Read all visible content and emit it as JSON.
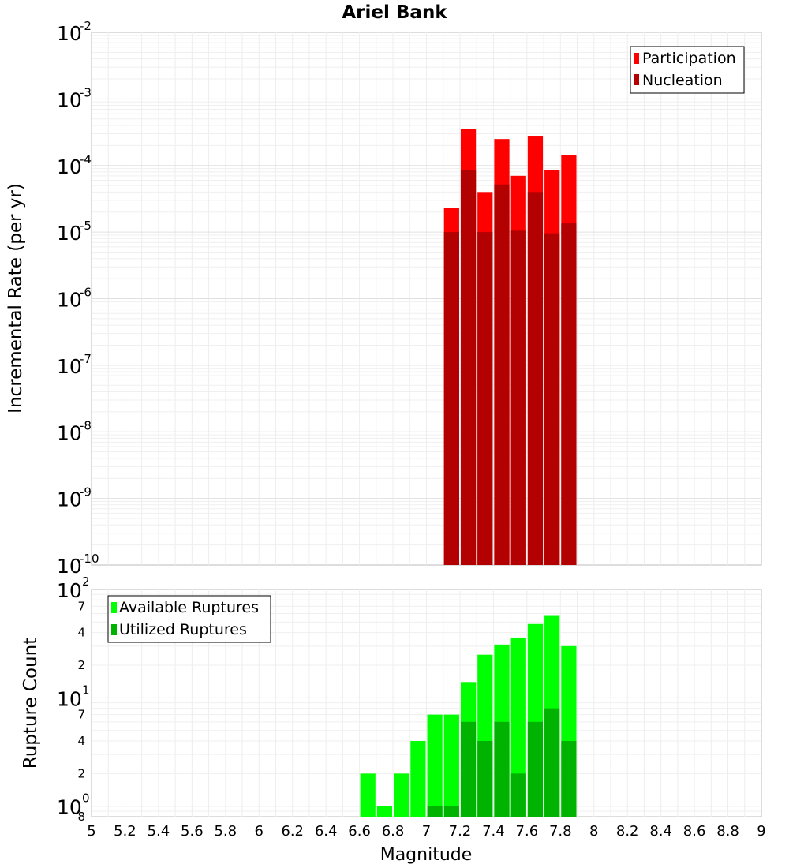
{
  "chart_data": [
    {
      "type": "bar",
      "title": "Ariel Bank",
      "ylabel": "Incremental Rate (per yr)",
      "yscale": "log",
      "ylim": [
        1e-10,
        0.01
      ],
      "yticks": [
        {
          "base": "10",
          "exp": "-2"
        },
        {
          "base": "10",
          "exp": "-3"
        },
        {
          "base": "10",
          "exp": "-4"
        },
        {
          "base": "10",
          "exp": "-5"
        },
        {
          "base": "10",
          "exp": "-6"
        },
        {
          "base": "10",
          "exp": "-7"
        },
        {
          "base": "10",
          "exp": "-8"
        },
        {
          "base": "10",
          "exp": "-9"
        },
        {
          "base": "10",
          "exp": "-10"
        }
      ],
      "x": [
        7.15,
        7.25,
        7.35,
        7.45,
        7.55,
        7.65,
        7.75,
        7.85
      ],
      "bin_width": 0.1,
      "series": [
        {
          "name": "Participation",
          "color": "#ff0000",
          "values": [
            2.3e-05,
            0.00035,
            4e-05,
            0.00025,
            7e-05,
            0.00028,
            8.5e-05,
            0.000145
          ]
        },
        {
          "name": "Nucleation",
          "color": "#b30000",
          "values": [
            1e-05,
            8.5e-05,
            1e-05,
            5.2e-05,
            1.05e-05,
            4e-05,
            9.6e-06,
            1.35e-05
          ]
        }
      ],
      "legend": "top-right",
      "grid": true
    },
    {
      "type": "bar",
      "xlabel": "Magnitude",
      "ylabel": "Rupture Count",
      "yscale": "log",
      "ylim": [
        0.8,
        100
      ],
      "yticks": [
        {
          "base": "10",
          "exp": "2"
        },
        {
          "base": "10",
          "exp": "1"
        },
        {
          "base": "10",
          "exp": "0"
        }
      ],
      "yminor_labels": [
        "7",
        "4",
        "2",
        "7",
        "4",
        "2",
        "8"
      ],
      "xlim": [
        5,
        9
      ],
      "xticks": [
        "5",
        "5.2",
        "5.4",
        "5.6",
        "5.8",
        "6",
        "6.2",
        "6.4",
        "6.6",
        "6.8",
        "7",
        "7.2",
        "7.4",
        "7.6",
        "7.8",
        "8",
        "8.2",
        "8.4",
        "8.6",
        "8.8",
        "9"
      ],
      "x": [
        6.65,
        6.75,
        6.85,
        6.95,
        7.05,
        7.15,
        7.25,
        7.35,
        7.45,
        7.55,
        7.65,
        7.75,
        7.85
      ],
      "bin_width": 0.1,
      "series": [
        {
          "name": "Available Ruptures",
          "color": "#00ff00",
          "values": [
            2,
            1,
            2,
            4,
            7,
            7,
            14,
            25,
            31,
            36,
            48,
            57,
            30
          ]
        },
        {
          "name": "Utilized Ruptures",
          "color": "#00b300",
          "values": [
            0,
            0,
            0,
            0,
            1,
            1,
            6,
            4,
            6,
            2,
            6,
            8,
            4
          ]
        }
      ],
      "legend": "top-left",
      "grid": true
    }
  ]
}
